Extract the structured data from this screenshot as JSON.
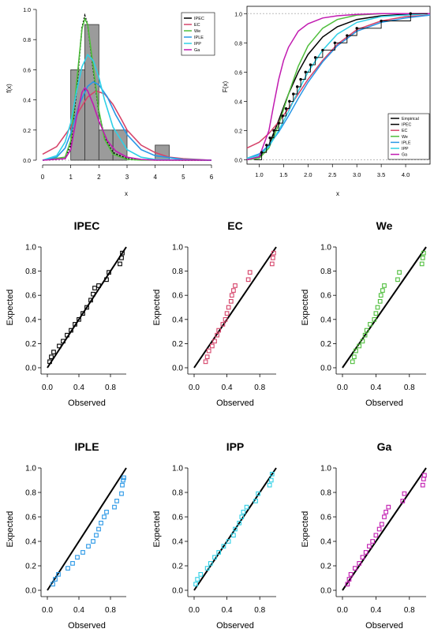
{
  "colors": {
    "IPEC": "#000000",
    "EC": "#d6446a",
    "We": "#4fbe3c",
    "IPLE": "#2897e6",
    "IPP": "#2fd0e6",
    "Ga": "#c11ab0",
    "Empirical": "#000000",
    "hist": "#9b9b9b"
  },
  "chart_data": [
    {
      "type": "bar",
      "xlabel": "x",
      "ylabel": "f(x)",
      "xlim": [
        0,
        6
      ],
      "ylim": [
        0,
        1
      ],
      "xticks": [
        "0",
        "1",
        "2",
        "3",
        "4",
        "5",
        "6"
      ],
      "yticks": [
        "0.0",
        "0.2",
        "0.4",
        "0.6",
        "0.8",
        "1.0"
      ],
      "histogram": {
        "bins": [
          [
            1.0,
            1.5
          ],
          [
            1.5,
            2.0
          ],
          [
            2.0,
            2.5
          ],
          [
            2.5,
            3.0
          ],
          [
            4.0,
            4.5
          ]
        ],
        "density": [
          0.6,
          0.9,
          0.2,
          0.2,
          0.1
        ]
      },
      "legend": [
        "IPEC",
        "EC",
        "We",
        "IPLE",
        "IPP",
        "Ga"
      ],
      "legend_position": "top-right",
      "curves": [
        {
          "name": "IPEC",
          "x": [
            0,
            0.8,
            1.0,
            1.2,
            1.4,
            1.5,
            1.6,
            1.8,
            2.0,
            2.2,
            2.5,
            3.0,
            3.5,
            4.0,
            6.0
          ],
          "y": [
            0,
            0.01,
            0.1,
            0.45,
            0.88,
            0.96,
            0.9,
            0.6,
            0.32,
            0.15,
            0.05,
            0.01,
            0.003,
            0.001,
            0
          ]
        },
        {
          "name": "EC",
          "x": [
            0,
            0.5,
            1.0,
            1.3,
            1.6,
            1.9,
            2.2,
            2.5,
            2.8,
            3.0,
            3.5,
            4.0,
            4.5,
            5.0,
            6.0
          ],
          "y": [
            0.04,
            0.09,
            0.22,
            0.33,
            0.42,
            0.46,
            0.44,
            0.37,
            0.27,
            0.2,
            0.1,
            0.05,
            0.02,
            0.01,
            0
          ]
        },
        {
          "name": "We",
          "x": [
            0,
            0.8,
            1.0,
            1.2,
            1.4,
            1.5,
            1.6,
            1.8,
            2.0,
            2.2,
            2.5,
            3.0,
            3.5,
            6.0
          ],
          "y": [
            0,
            0.02,
            0.13,
            0.5,
            0.87,
            0.94,
            0.9,
            0.62,
            0.33,
            0.14,
            0.04,
            0.005,
            0.001,
            0
          ]
        },
        {
          "name": "IPLE",
          "x": [
            0,
            0.5,
            0.8,
            1.0,
            1.3,
            1.6,
            1.8,
            2.0,
            2.3,
            2.6,
            3.0,
            3.5,
            4.0,
            5.0,
            6.0
          ],
          "y": [
            0,
            0.02,
            0.08,
            0.18,
            0.37,
            0.49,
            0.52,
            0.5,
            0.42,
            0.3,
            0.17,
            0.07,
            0.03,
            0.005,
            0
          ]
        },
        {
          "name": "IPP",
          "x": [
            0,
            0.5,
            0.8,
            1.0,
            1.2,
            1.4,
            1.6,
            1.8,
            2.0,
            2.2,
            2.5,
            3.0,
            3.5,
            4.0,
            6.0
          ],
          "y": [
            0,
            0.03,
            0.12,
            0.25,
            0.45,
            0.62,
            0.7,
            0.66,
            0.55,
            0.4,
            0.22,
            0.07,
            0.02,
            0.005,
            0
          ]
        },
        {
          "name": "Ga",
          "x": [
            0,
            0.8,
            1.0,
            1.2,
            1.4,
            1.5,
            1.6,
            1.8,
            2.0,
            2.3,
            2.6,
            3.0,
            3.5,
            4.0,
            6.0
          ],
          "y": [
            0,
            0.01,
            0.07,
            0.28,
            0.45,
            0.48,
            0.46,
            0.37,
            0.26,
            0.13,
            0.06,
            0.02,
            0.005,
            0.001,
            0
          ]
        }
      ]
    },
    {
      "type": "line",
      "xlabel": "x",
      "ylabel": "F(x)",
      "xlim": [
        0.75,
        4.5
      ],
      "ylim": [
        0,
        1
      ],
      "xticks": [
        "1.0",
        "1.5",
        "2.0",
        "2.5",
        "3.0",
        "3.5",
        "4.0"
      ],
      "yticks": [
        "0.0",
        "0.2",
        "0.4",
        "0.6",
        "0.8",
        "1.0"
      ],
      "legend": [
        "Empirical",
        "IPEC",
        "EC",
        "We",
        "IPLE",
        "IPP",
        "Ga"
      ],
      "legend_position": "bottom-right",
      "empirical_points": {
        "x": [
          1.05,
          1.15,
          1.22,
          1.3,
          1.4,
          1.48,
          1.55,
          1.62,
          1.7,
          1.78,
          1.85,
          1.95,
          2.05,
          2.15,
          2.3,
          2.55,
          2.8,
          3.0,
          3.5,
          4.1
        ],
        "y": [
          0.05,
          0.1,
          0.15,
          0.2,
          0.25,
          0.3,
          0.35,
          0.4,
          0.45,
          0.5,
          0.55,
          0.6,
          0.65,
          0.7,
          0.75,
          0.8,
          0.85,
          0.9,
          0.95,
          1.0
        ]
      },
      "curves": [
        {
          "name": "IPEC",
          "x": [
            0.75,
            1.0,
            1.2,
            1.4,
            1.6,
            1.8,
            2.0,
            2.3,
            2.6,
            3.0,
            3.5,
            4.0,
            4.5
          ],
          "y": [
            0,
            0.02,
            0.1,
            0.27,
            0.45,
            0.6,
            0.72,
            0.84,
            0.91,
            0.96,
            0.985,
            0.995,
            1.0
          ]
        },
        {
          "name": "EC",
          "x": [
            0.75,
            1.0,
            1.2,
            1.4,
            1.6,
            1.8,
            2.0,
            2.3,
            2.6,
            3.0,
            3.5,
            4.0,
            4.5
          ],
          "y": [
            0.08,
            0.12,
            0.18,
            0.26,
            0.35,
            0.45,
            0.55,
            0.68,
            0.79,
            0.89,
            0.95,
            0.98,
            0.99
          ]
        },
        {
          "name": "We",
          "x": [
            0.75,
            1.0,
            1.2,
            1.4,
            1.6,
            1.8,
            2.0,
            2.3,
            2.6,
            3.0,
            3.5,
            4.0,
            4.5
          ],
          "y": [
            0,
            0.01,
            0.08,
            0.24,
            0.45,
            0.64,
            0.78,
            0.9,
            0.96,
            0.99,
            1.0,
            1.0,
            1.0
          ]
        },
        {
          "name": "IPLE",
          "x": [
            0.75,
            1.0,
            1.2,
            1.4,
            1.6,
            1.8,
            2.0,
            2.3,
            2.6,
            3.0,
            3.5,
            4.0,
            4.5
          ],
          "y": [
            0.01,
            0.04,
            0.1,
            0.19,
            0.3,
            0.42,
            0.53,
            0.67,
            0.78,
            0.88,
            0.94,
            0.97,
            0.99
          ]
        },
        {
          "name": "IPP",
          "x": [
            0.75,
            1.0,
            1.2,
            1.4,
            1.6,
            1.8,
            2.0,
            2.3,
            2.6,
            3.0,
            3.5,
            4.0,
            4.5
          ],
          "y": [
            0.01,
            0.03,
            0.09,
            0.2,
            0.33,
            0.47,
            0.6,
            0.75,
            0.86,
            0.94,
            0.98,
            0.99,
            1.0
          ]
        },
        {
          "name": "Ga",
          "x": [
            0.75,
            1.0,
            1.2,
            1.3,
            1.4,
            1.5,
            1.6,
            1.8,
            2.0,
            2.3,
            2.6,
            3.0,
            3.5,
            4.0,
            4.5
          ],
          "y": [
            0,
            0.02,
            0.2,
            0.38,
            0.55,
            0.68,
            0.77,
            0.88,
            0.93,
            0.97,
            0.985,
            0.995,
            1.0,
            1.0,
            1.0
          ]
        }
      ]
    },
    {
      "type": "scatter",
      "title": "IPEC",
      "xlabel": "Observed",
      "ylabel": "Expected",
      "xlim": [
        0,
        1
      ],
      "ylim": [
        0,
        1
      ],
      "xticks": [
        "0.0",
        "0.4",
        "0.8"
      ],
      "yticks": [
        "0.0",
        "0.2",
        "0.4",
        "0.6",
        "0.8",
        "1.0"
      ],
      "series": "IPEC",
      "x": [
        0.03,
        0.05,
        0.08,
        0.15,
        0.2,
        0.25,
        0.3,
        0.35,
        0.4,
        0.45,
        0.5,
        0.55,
        0.58,
        0.6,
        0.65,
        0.75,
        0.78,
        0.92,
        0.94,
        0.95
      ],
      "y": [
        0.05,
        0.09,
        0.13,
        0.18,
        0.22,
        0.27,
        0.31,
        0.36,
        0.4,
        0.45,
        0.5,
        0.56,
        0.61,
        0.66,
        0.68,
        0.73,
        0.79,
        0.86,
        0.91,
        0.95
      ]
    },
    {
      "type": "scatter",
      "title": "EC",
      "xlabel": "Observed",
      "ylabel": "Expected",
      "xlim": [
        0,
        1
      ],
      "ylim": [
        0,
        1
      ],
      "xticks": [
        "0.0",
        "0.4",
        "0.8"
      ],
      "yticks": [
        "0.0",
        "0.2",
        "0.4",
        "0.6",
        "0.8",
        "1.0"
      ],
      "series": "EC",
      "x": [
        0.14,
        0.16,
        0.18,
        0.22,
        0.25,
        0.28,
        0.3,
        0.35,
        0.38,
        0.4,
        0.42,
        0.45,
        0.46,
        0.48,
        0.5,
        0.66,
        0.68,
        0.95,
        0.96,
        0.97
      ],
      "y": [
        0.05,
        0.09,
        0.14,
        0.18,
        0.22,
        0.27,
        0.31,
        0.36,
        0.4,
        0.45,
        0.5,
        0.55,
        0.6,
        0.64,
        0.68,
        0.73,
        0.79,
        0.86,
        0.91,
        0.95
      ]
    },
    {
      "type": "scatter",
      "title": "We",
      "xlabel": "Observed",
      "ylabel": "Expected",
      "xlim": [
        0,
        1
      ],
      "ylim": [
        0,
        1
      ],
      "xticks": [
        "0.0",
        "0.4",
        "0.8"
      ],
      "yticks": [
        "0.0",
        "0.2",
        "0.4",
        "0.6",
        "0.8",
        "1.0"
      ],
      "series": "We",
      "x": [
        0.12,
        0.14,
        0.16,
        0.2,
        0.24,
        0.27,
        0.29,
        0.33,
        0.38,
        0.4,
        0.42,
        0.45,
        0.46,
        0.48,
        0.5,
        0.66,
        0.68,
        0.95,
        0.96,
        0.97
      ],
      "y": [
        0.05,
        0.09,
        0.14,
        0.18,
        0.22,
        0.27,
        0.31,
        0.36,
        0.4,
        0.45,
        0.5,
        0.55,
        0.6,
        0.64,
        0.68,
        0.73,
        0.79,
        0.86,
        0.91,
        0.95
      ]
    },
    {
      "type": "scatter",
      "title": "IPLE",
      "xlabel": "Observed",
      "ylabel": "Expected",
      "xlim": [
        0,
        1
      ],
      "ylim": [
        0,
        1
      ],
      "xticks": [
        "0.0",
        "0.4",
        "0.8"
      ],
      "yticks": [
        "0.0",
        "0.2",
        "0.4",
        "0.6",
        "0.8",
        "1.0"
      ],
      "series": "IPLE",
      "x": [
        0.07,
        0.1,
        0.14,
        0.26,
        0.32,
        0.38,
        0.45,
        0.52,
        0.58,
        0.62,
        0.65,
        0.68,
        0.72,
        0.75,
        0.85,
        0.88,
        0.94,
        0.95,
        0.96,
        0.97
      ],
      "y": [
        0.05,
        0.09,
        0.13,
        0.18,
        0.22,
        0.27,
        0.31,
        0.36,
        0.4,
        0.45,
        0.5,
        0.55,
        0.6,
        0.64,
        0.68,
        0.73,
        0.79,
        0.86,
        0.9,
        0.92
      ]
    },
    {
      "type": "scatter",
      "title": "IPP",
      "xlabel": "Observed",
      "ylabel": "Expected",
      "xlim": [
        0,
        1
      ],
      "ylim": [
        0,
        1
      ],
      "xticks": [
        "0.0",
        "0.4",
        "0.8"
      ],
      "yticks": [
        "0.0",
        "0.2",
        "0.4",
        "0.6",
        "0.8",
        "1.0"
      ],
      "series": "IPP",
      "x": [
        0.02,
        0.04,
        0.08,
        0.16,
        0.2,
        0.25,
        0.3,
        0.36,
        0.42,
        0.48,
        0.5,
        0.55,
        0.58,
        0.6,
        0.64,
        0.75,
        0.78,
        0.92,
        0.94,
        0.95
      ],
      "y": [
        0.05,
        0.09,
        0.13,
        0.18,
        0.22,
        0.27,
        0.31,
        0.36,
        0.4,
        0.45,
        0.5,
        0.55,
        0.6,
        0.64,
        0.68,
        0.73,
        0.79,
        0.86,
        0.9,
        0.95
      ]
    },
    {
      "type": "scatter",
      "title": "Ga",
      "xlabel": "Observed",
      "ylabel": "Expected",
      "xlim": [
        0,
        1
      ],
      "ylim": [
        0,
        1
      ],
      "xticks": [
        "0.0",
        "0.4",
        "0.8"
      ],
      "yticks": [
        "0.0",
        "0.2",
        "0.4",
        "0.6",
        "0.8",
        "1.0"
      ],
      "series": "Ga",
      "x": [
        0.06,
        0.08,
        0.1,
        0.15,
        0.2,
        0.24,
        0.28,
        0.32,
        0.36,
        0.4,
        0.44,
        0.47,
        0.5,
        0.52,
        0.55,
        0.72,
        0.74,
        0.96,
        0.97,
        0.98
      ],
      "y": [
        0.05,
        0.09,
        0.13,
        0.18,
        0.22,
        0.27,
        0.31,
        0.36,
        0.4,
        0.45,
        0.5,
        0.54,
        0.6,
        0.64,
        0.68,
        0.73,
        0.79,
        0.86,
        0.91,
        0.94
      ]
    }
  ]
}
